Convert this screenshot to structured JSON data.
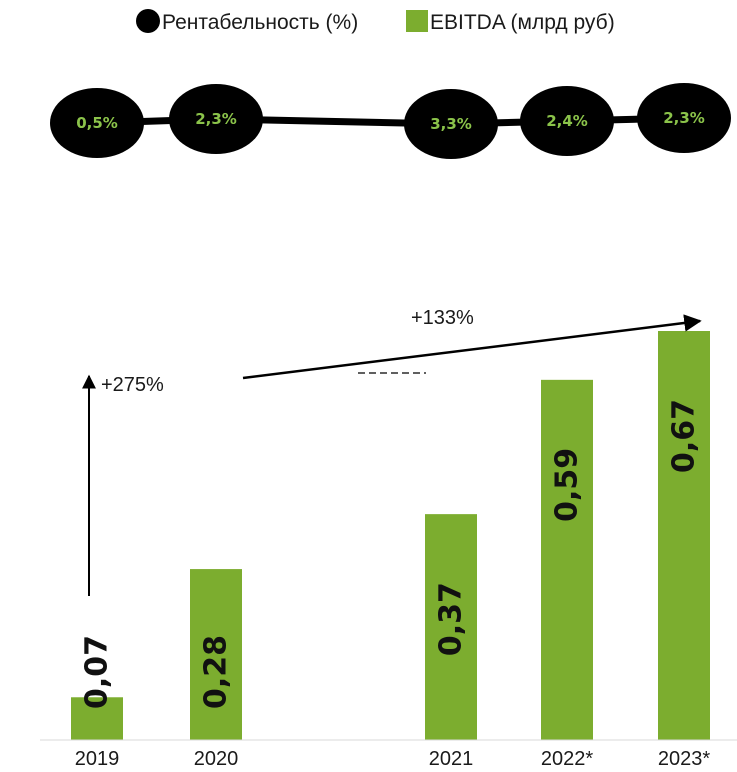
{
  "colors": {
    "bar": "#7cad2f",
    "marker": "#000000",
    "marker_text": "#8bc34a",
    "line": "#000000",
    "text": "#1a1a1a"
  },
  "legend": {
    "margin_label": "Рентабельность (%)",
    "ebitda_label": "EBITDA (млрд руб)"
  },
  "annotations": {
    "growth_2019_2020": "+275%",
    "growth_2020_2023": "+133%"
  },
  "chart_data": [
    {
      "type": "line",
      "categories": [
        "2019",
        "2020",
        "2021",
        "2022*",
        "2023*"
      ],
      "series": [
        {
          "name": "Рентабельность (%)",
          "values": [
            0.5,
            2.3,
            3.3,
            2.4,
            2.3
          ],
          "labels": [
            "0,5%",
            "2,3%",
            "3,3%",
            "2,4%",
            "2,3%"
          ]
        }
      ]
    },
    {
      "type": "bar",
      "categories": [
        "2019",
        "2020",
        "2021",
        "2022*",
        "2023*"
      ],
      "series": [
        {
          "name": "EBITDA (млрд руб)",
          "values": [
            0.07,
            0.28,
            0.37,
            0.59,
            0.67
          ],
          "labels": [
            "0,07",
            "0,28",
            "0,37",
            "0,59",
            "0,67"
          ]
        }
      ],
      "ylim": [
        0,
        0.67
      ]
    }
  ]
}
